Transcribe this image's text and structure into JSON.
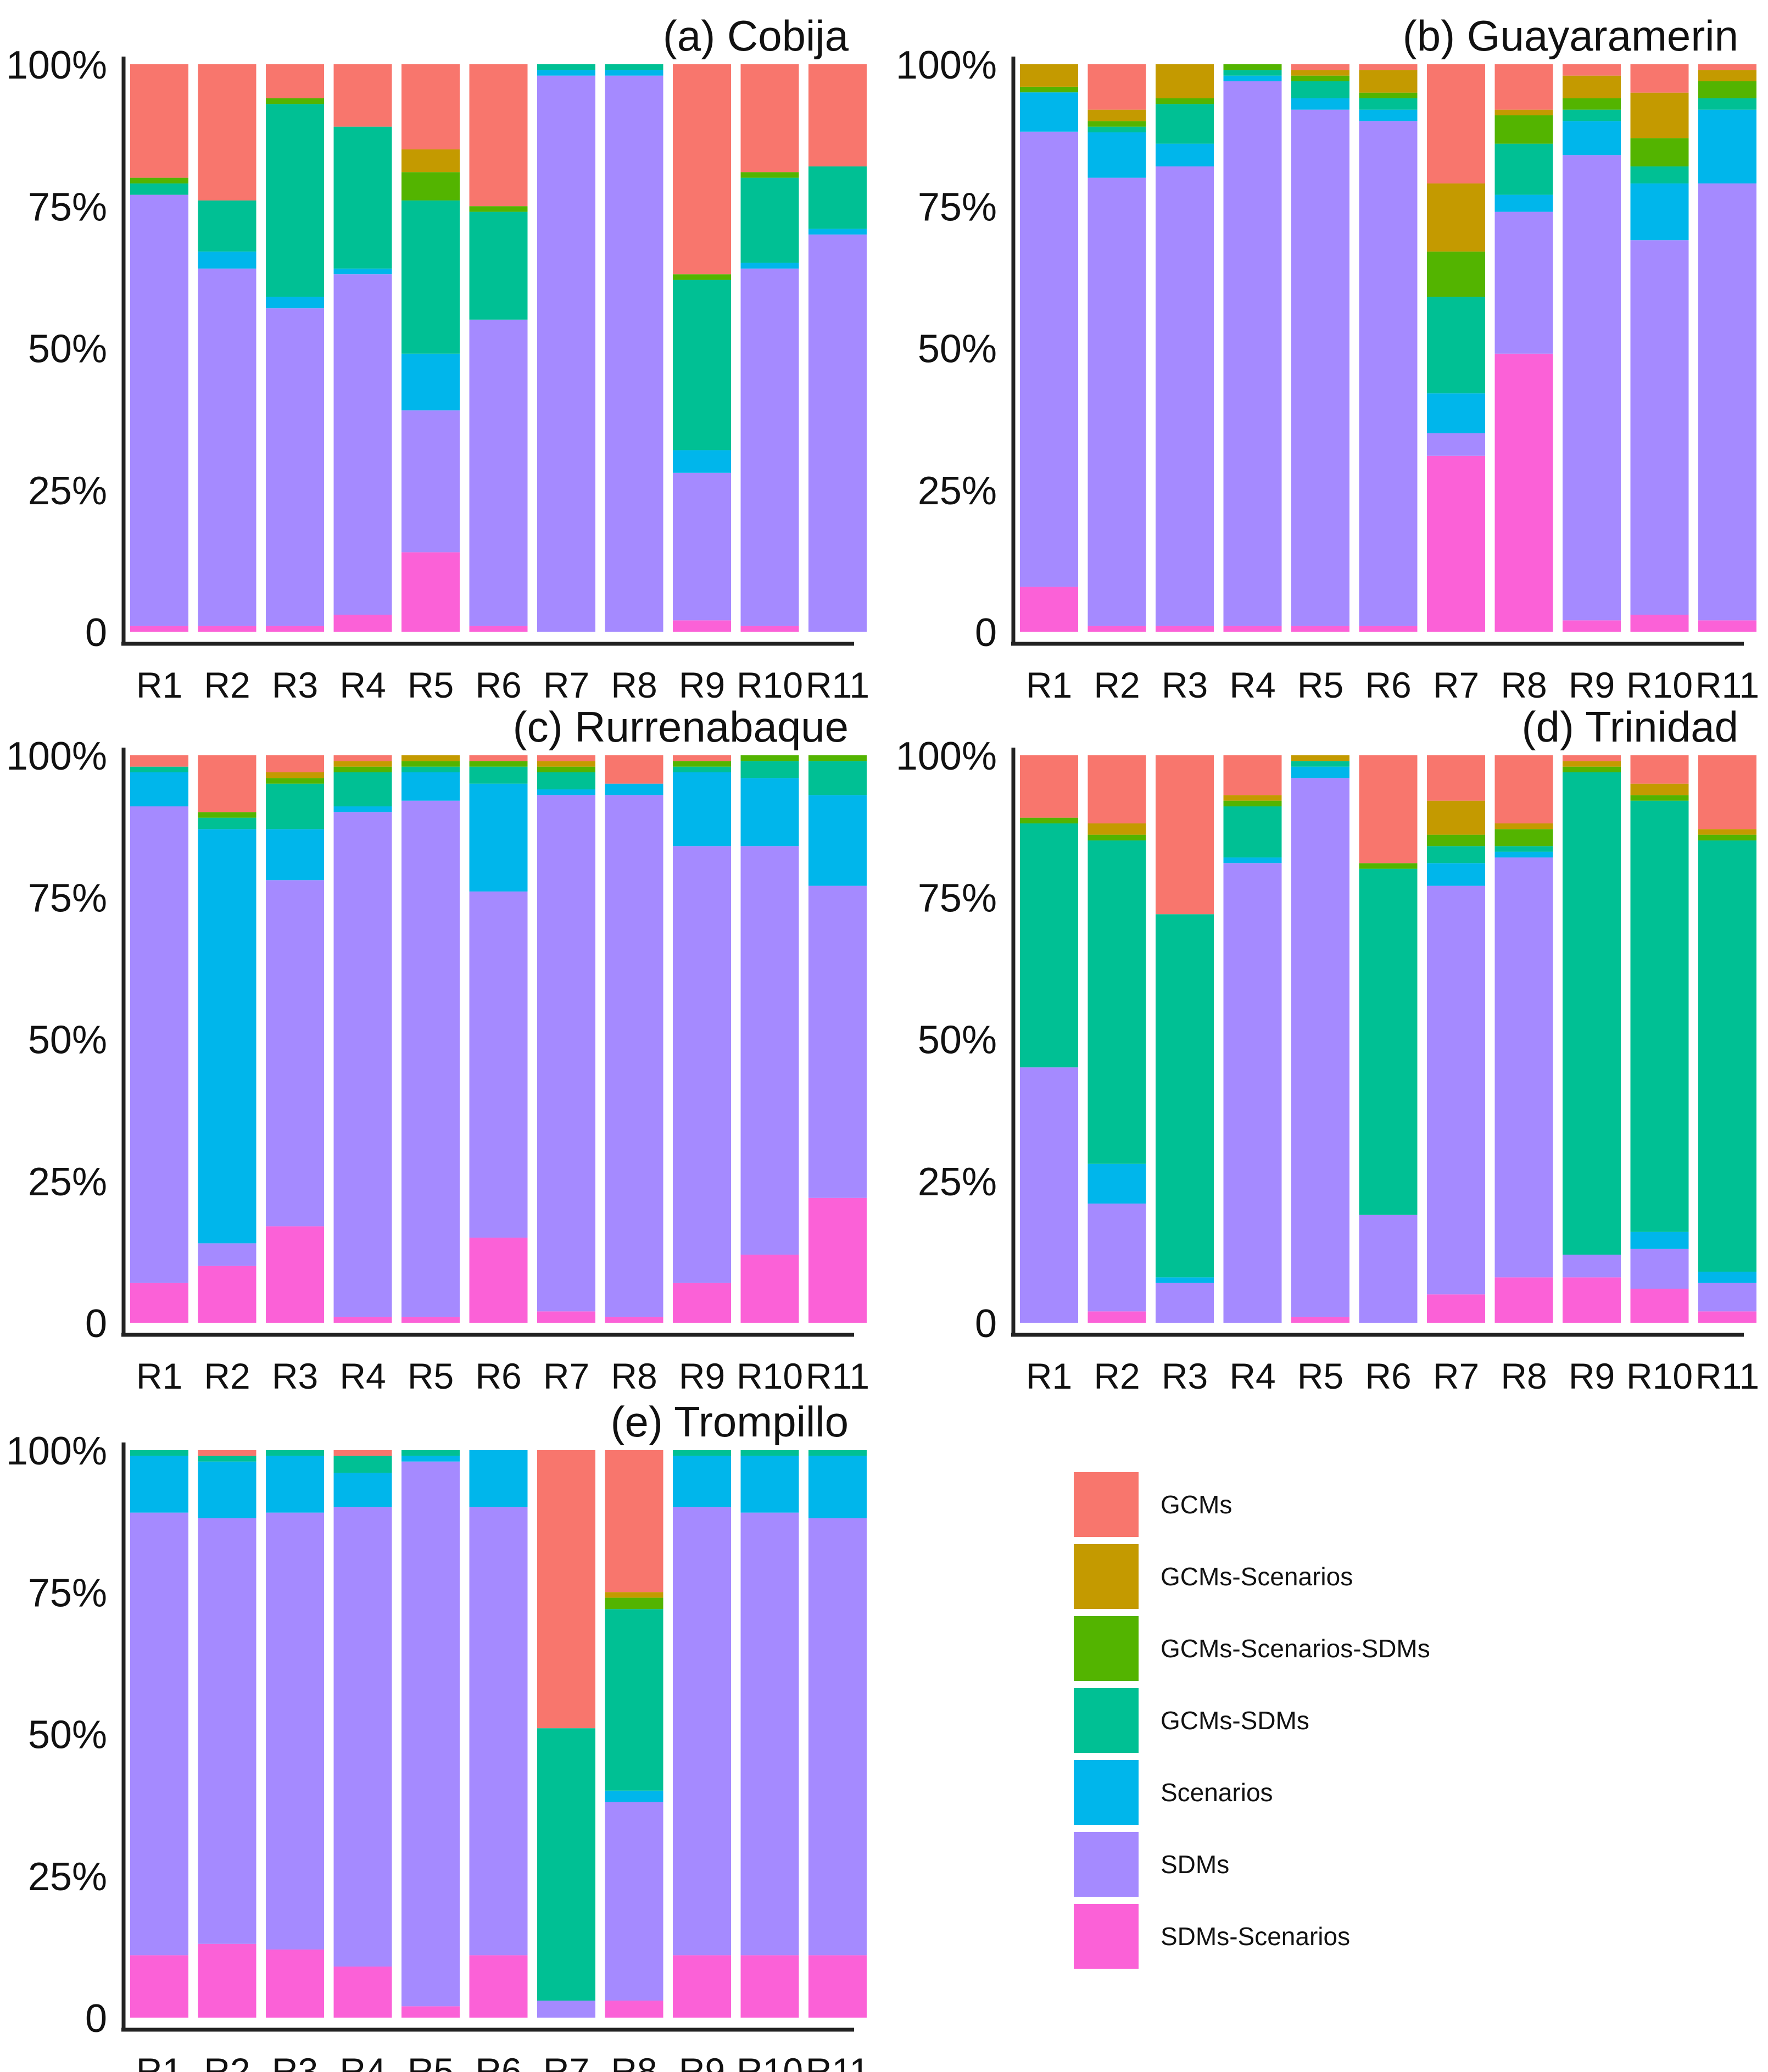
{
  "chart_data": {
    "type": "bar",
    "stacked": true,
    "normalized": true,
    "categories": [
      "R1",
      "R2",
      "R3",
      "R4",
      "R5",
      "R6",
      "R7",
      "R8",
      "R9",
      "R10",
      "R11"
    ],
    "y_tick_labels": [
      "0",
      "25%",
      "50%",
      "75%",
      "100%"
    ],
    "ylim": [
      0,
      100
    ],
    "legend": {
      "placement": "bottom-right",
      "items": [
        {
          "name": "GCMs",
          "color": "#F8766D"
        },
        {
          "name": "GCMs-Scenarios",
          "color": "#C49A00"
        },
        {
          "name": "GCMs-Scenarios-SDMs",
          "color": "#53B400"
        },
        {
          "name": "GCMs-SDMs",
          "color": "#00C094"
        },
        {
          "name": "Scenarios",
          "color": "#00B6EB"
        },
        {
          "name": "SDMs",
          "color": "#A58AFF"
        },
        {
          "name": "SDMs-Scenarios",
          "color": "#FB61D7"
        }
      ]
    },
    "stack_order_bottom_to_top": [
      "SDMs-Scenarios",
      "SDMs",
      "Scenarios",
      "GCMs-SDMs",
      "GCMs-Scenarios-SDMs",
      "GCMs-Scenarios",
      "GCMs"
    ],
    "panels": [
      {
        "title": "(a) Cobija",
        "values": {
          "R1": {
            "SDMs-Scenarios": 1,
            "SDMs": 76,
            "Scenarios": 0,
            "GCMs-SDMs": 2,
            "GCMs-Scenarios-SDMs": 1,
            "GCMs-Scenarios": 0,
            "GCMs": 20
          },
          "R2": {
            "SDMs-Scenarios": 1,
            "SDMs": 63,
            "Scenarios": 3,
            "GCMs-SDMs": 9,
            "GCMs-Scenarios-SDMs": 0,
            "GCMs-Scenarios": 0,
            "GCMs": 24
          },
          "R3": {
            "SDMs-Scenarios": 1,
            "SDMs": 56,
            "Scenarios": 2,
            "GCMs-SDMs": 34,
            "GCMs-Scenarios-SDMs": 1,
            "GCMs-Scenarios": 0,
            "GCMs": 6
          },
          "R4": {
            "SDMs-Scenarios": 3,
            "SDMs": 60,
            "Scenarios": 1,
            "GCMs-SDMs": 25,
            "GCMs-Scenarios-SDMs": 0,
            "GCMs-Scenarios": 0,
            "GCMs": 11
          },
          "R5": {
            "SDMs-Scenarios": 14,
            "SDMs": 25,
            "Scenarios": 10,
            "GCMs-SDMs": 27,
            "GCMs-Scenarios-SDMs": 5,
            "GCMs-Scenarios": 4,
            "GCMs": 15
          },
          "R6": {
            "SDMs-Scenarios": 1,
            "SDMs": 54,
            "Scenarios": 0,
            "GCMs-SDMs": 19,
            "GCMs-Scenarios-SDMs": 1,
            "GCMs-Scenarios": 0,
            "GCMs": 25
          },
          "R7": {
            "SDMs-Scenarios": 0,
            "SDMs": 98,
            "Scenarios": 1,
            "GCMs-SDMs": 1,
            "GCMs-Scenarios-SDMs": 0,
            "GCMs-Scenarios": 0,
            "GCMs": 0
          },
          "R8": {
            "SDMs-Scenarios": 0,
            "SDMs": 98,
            "Scenarios": 1,
            "GCMs-SDMs": 1,
            "GCMs-Scenarios-SDMs": 0,
            "GCMs-Scenarios": 0,
            "GCMs": 0
          },
          "R9": {
            "SDMs-Scenarios": 2,
            "SDMs": 26,
            "Scenarios": 4,
            "GCMs-SDMs": 30,
            "GCMs-Scenarios-SDMs": 1,
            "GCMs-Scenarios": 0,
            "GCMs": 37
          },
          "R10": {
            "SDMs-Scenarios": 1,
            "SDMs": 63,
            "Scenarios": 1,
            "GCMs-SDMs": 15,
            "GCMs-Scenarios-SDMs": 1,
            "GCMs-Scenarios": 0,
            "GCMs": 19
          },
          "R11": {
            "SDMs-Scenarios": 0,
            "SDMs": 70,
            "Scenarios": 1,
            "GCMs-SDMs": 11,
            "GCMs-Scenarios-SDMs": 0,
            "GCMs-Scenarios": 0,
            "GCMs": 18
          }
        }
      },
      {
        "title": "(b) Guayaramerin",
        "values": {
          "R1": {
            "SDMs-Scenarios": 8,
            "SDMs": 81,
            "Scenarios": 7,
            "GCMs-SDMs": 0,
            "GCMs-Scenarios-SDMs": 1,
            "GCMs-Scenarios": 4,
            "GCMs": 0
          },
          "R2": {
            "SDMs-Scenarios": 1,
            "SDMs": 79,
            "Scenarios": 8,
            "GCMs-SDMs": 1,
            "GCMs-Scenarios-SDMs": 1,
            "GCMs-Scenarios": 2,
            "GCMs": 8
          },
          "R3": {
            "SDMs-Scenarios": 1,
            "SDMs": 81,
            "Scenarios": 4,
            "GCMs-SDMs": 7,
            "GCMs-Scenarios-SDMs": 1,
            "GCMs-Scenarios": 6,
            "GCMs": 0
          },
          "R4": {
            "SDMs-Scenarios": 1,
            "SDMs": 96,
            "Scenarios": 1,
            "GCMs-SDMs": 1,
            "GCMs-Scenarios-SDMs": 1,
            "GCMs-Scenarios": 0,
            "GCMs": 0
          },
          "R5": {
            "SDMs-Scenarios": 1,
            "SDMs": 91,
            "Scenarios": 2,
            "GCMs-SDMs": 3,
            "GCMs-Scenarios-SDMs": 1,
            "GCMs-Scenarios": 1,
            "GCMs": 1
          },
          "R6": {
            "SDMs-Scenarios": 1,
            "SDMs": 89,
            "Scenarios": 2,
            "GCMs-SDMs": 2,
            "GCMs-Scenarios-SDMs": 1,
            "GCMs-Scenarios": 4,
            "GCMs": 1
          },
          "R7": {
            "SDMs-Scenarios": 31,
            "SDMs": 4,
            "Scenarios": 7,
            "GCMs-SDMs": 17,
            "GCMs-Scenarios-SDMs": 8,
            "GCMs-Scenarios": 12,
            "GCMs": 21
          },
          "R8": {
            "SDMs-Scenarios": 49,
            "SDMs": 25,
            "Scenarios": 3,
            "GCMs-SDMs": 9,
            "GCMs-Scenarios-SDMs": 5,
            "GCMs-Scenarios": 1,
            "GCMs": 8
          },
          "R9": {
            "SDMs-Scenarios": 2,
            "SDMs": 82,
            "Scenarios": 6,
            "GCMs-SDMs": 2,
            "GCMs-Scenarios-SDMs": 2,
            "GCMs-Scenarios": 4,
            "GCMs": 2
          },
          "R10": {
            "SDMs-Scenarios": 3,
            "SDMs": 66,
            "Scenarios": 10,
            "GCMs-SDMs": 3,
            "GCMs-Scenarios-SDMs": 5,
            "GCMs-Scenarios": 8,
            "GCMs": 5
          },
          "R11": {
            "SDMs-Scenarios": 2,
            "SDMs": 77,
            "Scenarios": 13,
            "GCMs-SDMs": 2,
            "GCMs-Scenarios-SDMs": 3,
            "GCMs-Scenarios": 2,
            "GCMs": 1
          }
        }
      },
      {
        "title": "(c) Rurrenabaque",
        "values": {
          "R1": {
            "SDMs-Scenarios": 7,
            "SDMs": 84,
            "Scenarios": 6,
            "GCMs-SDMs": 1,
            "GCMs-Scenarios-SDMs": 0,
            "GCMs-Scenarios": 0,
            "GCMs": 2
          },
          "R2": {
            "SDMs-Scenarios": 10,
            "SDMs": 4,
            "Scenarios": 73,
            "GCMs-SDMs": 2,
            "GCMs-Scenarios-SDMs": 1,
            "GCMs-Scenarios": 0,
            "GCMs": 10
          },
          "R3": {
            "SDMs-Scenarios": 17,
            "SDMs": 61,
            "Scenarios": 9,
            "GCMs-SDMs": 8,
            "GCMs-Scenarios-SDMs": 1,
            "GCMs-Scenarios": 1,
            "GCMs": 3
          },
          "R4": {
            "SDMs-Scenarios": 1,
            "SDMs": 89,
            "Scenarios": 1,
            "GCMs-SDMs": 6,
            "GCMs-Scenarios-SDMs": 1,
            "GCMs-Scenarios": 1,
            "GCMs": 1
          },
          "R5": {
            "SDMs-Scenarios": 1,
            "SDMs": 91,
            "Scenarios": 5,
            "GCMs-SDMs": 1,
            "GCMs-Scenarios-SDMs": 1,
            "GCMs-Scenarios": 1,
            "GCMs": 0
          },
          "R6": {
            "SDMs-Scenarios": 15,
            "SDMs": 61,
            "Scenarios": 19,
            "GCMs-SDMs": 3,
            "GCMs-Scenarios-SDMs": 1,
            "GCMs-Scenarios": 0,
            "GCMs": 1
          },
          "R7": {
            "SDMs-Scenarios": 2,
            "SDMs": 91,
            "Scenarios": 1,
            "GCMs-SDMs": 3,
            "GCMs-Scenarios-SDMs": 1,
            "GCMs-Scenarios": 1,
            "GCMs": 1
          },
          "R8": {
            "SDMs-Scenarios": 1,
            "SDMs": 92,
            "Scenarios": 2,
            "GCMs-SDMs": 0,
            "GCMs-Scenarios-SDMs": 0,
            "GCMs-Scenarios": 0,
            "GCMs": 5
          },
          "R9": {
            "SDMs-Scenarios": 7,
            "SDMs": 77,
            "Scenarios": 13,
            "GCMs-SDMs": 1,
            "GCMs-Scenarios-SDMs": 1,
            "GCMs-Scenarios": 0,
            "GCMs": 1
          },
          "R10": {
            "SDMs-Scenarios": 12,
            "SDMs": 72,
            "Scenarios": 12,
            "GCMs-SDMs": 3,
            "GCMs-Scenarios-SDMs": 1,
            "GCMs-Scenarios": 0,
            "GCMs": 0
          },
          "R11": {
            "SDMs-Scenarios": 22,
            "SDMs": 55,
            "Scenarios": 16,
            "GCMs-SDMs": 6,
            "GCMs-Scenarios-SDMs": 1,
            "GCMs-Scenarios": 0,
            "GCMs": 0
          }
        }
      },
      {
        "title": "(d) Trinidad",
        "values": {
          "R1": {
            "SDMs-Scenarios": 0,
            "SDMs": 45,
            "Scenarios": 0,
            "GCMs-SDMs": 43,
            "GCMs-Scenarios-SDMs": 1,
            "GCMs-Scenarios": 0,
            "GCMs": 11
          },
          "R2": {
            "SDMs-Scenarios": 2,
            "SDMs": 19,
            "Scenarios": 7,
            "GCMs-SDMs": 57,
            "GCMs-Scenarios-SDMs": 1,
            "GCMs-Scenarios": 2,
            "GCMs": 12
          },
          "R3": {
            "SDMs-Scenarios": 0,
            "SDMs": 7,
            "Scenarios": 1,
            "GCMs-SDMs": 64,
            "GCMs-Scenarios-SDMs": 0,
            "GCMs-Scenarios": 0,
            "GCMs": 28
          },
          "R4": {
            "SDMs-Scenarios": 0,
            "SDMs": 81,
            "Scenarios": 1,
            "GCMs-SDMs": 9,
            "GCMs-Scenarios-SDMs": 1,
            "GCMs-Scenarios": 1,
            "GCMs": 7
          },
          "R5": {
            "SDMs-Scenarios": 1,
            "SDMs": 95,
            "Scenarios": 2,
            "GCMs-SDMs": 1,
            "GCMs-Scenarios-SDMs": 0,
            "GCMs-Scenarios": 1,
            "GCMs": 0
          },
          "R6": {
            "SDMs-Scenarios": 0,
            "SDMs": 19,
            "Scenarios": 0,
            "GCMs-SDMs": 61,
            "GCMs-Scenarios-SDMs": 1,
            "GCMs-Scenarios": 0,
            "GCMs": 19
          },
          "R7": {
            "SDMs-Scenarios": 5,
            "SDMs": 72,
            "Scenarios": 4,
            "GCMs-SDMs": 3,
            "GCMs-Scenarios-SDMs": 2,
            "GCMs-Scenarios": 6,
            "GCMs": 8
          },
          "R8": {
            "SDMs-Scenarios": 8,
            "SDMs": 74,
            "Scenarios": 1,
            "GCMs-SDMs": 1,
            "GCMs-Scenarios-SDMs": 3,
            "GCMs-Scenarios": 1,
            "GCMs": 12
          },
          "R9": {
            "SDMs-Scenarios": 8,
            "SDMs": 4,
            "Scenarios": 0,
            "GCMs-SDMs": 85,
            "GCMs-Scenarios-SDMs": 1,
            "GCMs-Scenarios": 1,
            "GCMs": 1
          },
          "R10": {
            "SDMs-Scenarios": 6,
            "SDMs": 7,
            "Scenarios": 3,
            "GCMs-SDMs": 76,
            "GCMs-Scenarios-SDMs": 1,
            "GCMs-Scenarios": 2,
            "GCMs": 5
          },
          "R11": {
            "SDMs-Scenarios": 2,
            "SDMs": 5,
            "Scenarios": 2,
            "GCMs-SDMs": 76,
            "GCMs-Scenarios-SDMs": 1,
            "GCMs-Scenarios": 1,
            "GCMs": 13
          }
        }
      },
      {
        "title": "(e) Trompillo",
        "values": {
          "R1": {
            "SDMs-Scenarios": 11,
            "SDMs": 78,
            "Scenarios": 10,
            "GCMs-SDMs": 1,
            "GCMs-Scenarios-SDMs": 0,
            "GCMs-Scenarios": 0,
            "GCMs": 0
          },
          "R2": {
            "SDMs-Scenarios": 13,
            "SDMs": 75,
            "Scenarios": 10,
            "GCMs-SDMs": 1,
            "GCMs-Scenarios-SDMs": 0,
            "GCMs-Scenarios": 0,
            "GCMs": 1
          },
          "R3": {
            "SDMs-Scenarios": 12,
            "SDMs": 77,
            "Scenarios": 10,
            "GCMs-SDMs": 1,
            "GCMs-Scenarios-SDMs": 0,
            "GCMs-Scenarios": 0,
            "GCMs": 0
          },
          "R4": {
            "SDMs-Scenarios": 9,
            "SDMs": 81,
            "Scenarios": 6,
            "GCMs-SDMs": 3,
            "GCMs-Scenarios-SDMs": 0,
            "GCMs-Scenarios": 0,
            "GCMs": 1
          },
          "R5": {
            "SDMs-Scenarios": 2,
            "SDMs": 96,
            "Scenarios": 1,
            "GCMs-SDMs": 1,
            "GCMs-Scenarios-SDMs": 0,
            "GCMs-Scenarios": 0,
            "GCMs": 0
          },
          "R6": {
            "SDMs-Scenarios": 11,
            "SDMs": 79,
            "Scenarios": 10,
            "GCMs-SDMs": 0,
            "GCMs-Scenarios-SDMs": 0,
            "GCMs-Scenarios": 0,
            "GCMs": 0
          },
          "R7": {
            "SDMs-Scenarios": 0,
            "SDMs": 3,
            "Scenarios": 0,
            "GCMs-SDMs": 48,
            "GCMs-Scenarios-SDMs": 0,
            "GCMs-Scenarios": 0,
            "GCMs": 49
          },
          "R8": {
            "SDMs-Scenarios": 3,
            "SDMs": 35,
            "Scenarios": 2,
            "GCMs-SDMs": 32,
            "GCMs-Scenarios-SDMs": 2,
            "GCMs-Scenarios": 1,
            "GCMs": 25
          },
          "R9": {
            "SDMs-Scenarios": 11,
            "SDMs": 79,
            "Scenarios": 9,
            "GCMs-SDMs": 1,
            "GCMs-Scenarios-SDMs": 0,
            "GCMs-Scenarios": 0,
            "GCMs": 0
          },
          "R10": {
            "SDMs-Scenarios": 11,
            "SDMs": 78,
            "Scenarios": 10,
            "GCMs-SDMs": 1,
            "GCMs-Scenarios-SDMs": 0,
            "GCMs-Scenarios": 0,
            "GCMs": 0
          },
          "R11": {
            "SDMs-Scenarios": 11,
            "SDMs": 77,
            "Scenarios": 11,
            "GCMs-SDMs": 1,
            "GCMs-Scenarios-SDMs": 0,
            "GCMs-Scenarios": 0,
            "GCMs": 0
          }
        }
      }
    ]
  }
}
